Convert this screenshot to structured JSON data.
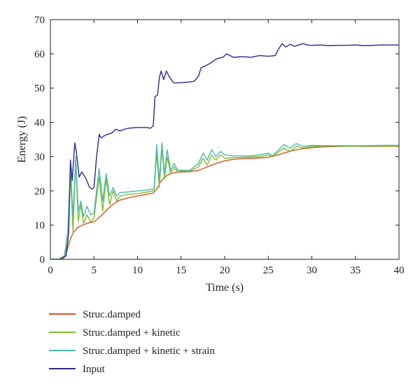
{
  "chart_data": {
    "type": "line",
    "title": "",
    "xlabel": "Time (s)",
    "ylabel": "Energy (J)",
    "xlim": [
      0,
      40
    ],
    "ylim": [
      0,
      70
    ],
    "xticks": [
      0,
      5,
      10,
      15,
      20,
      25,
      30,
      35,
      40
    ],
    "yticks": [
      0,
      10,
      20,
      30,
      40,
      50,
      60,
      70
    ],
    "grid": false,
    "legend_position": "bottom",
    "series": [
      {
        "name": "Struc.damped",
        "color": "#d9541e",
        "x": [
          0,
          1,
          1.5,
          1.8,
          2.0,
          2.3,
          2.6,
          3.0,
          3.5,
          4.0,
          4.5,
          5.0,
          5.5,
          6.0,
          6.5,
          7.0,
          7.5,
          8.0,
          9.0,
          10.0,
          11.0,
          11.8,
          12.2,
          12.6,
          13.0,
          13.5,
          14.0,
          14.5,
          15.0,
          16.0,
          17.0,
          18.0,
          19.0,
          20.0,
          21.0,
          22.0,
          23.0,
          24.0,
          25.0,
          26.0,
          27.0,
          28.0,
          29.0,
          30.0,
          31.0,
          32.0,
          34.0,
          36.0,
          38.0,
          40.0
        ],
        "values": [
          0,
          0,
          0.2,
          1.5,
          3.5,
          6.0,
          7.7,
          9.0,
          9.8,
          10.3,
          10.7,
          11.0,
          12.0,
          13.2,
          14.5,
          15.7,
          16.6,
          17.3,
          18.0,
          18.5,
          19.0,
          19.3,
          20.5,
          22.5,
          23.7,
          24.7,
          25.2,
          25.4,
          25.5,
          25.6,
          26.0,
          27.0,
          28.0,
          28.8,
          29.2,
          29.4,
          29.5,
          29.6,
          29.8,
          30.4,
          31.2,
          31.9,
          32.3,
          32.6,
          32.8,
          32.9,
          33.0,
          33.0,
          33.0,
          33.0
        ]
      },
      {
        "name": "Struc.damped + kinetic",
        "color": "#7cbf2a",
        "x": [
          0,
          1,
          1.6,
          2.0,
          2.3,
          2.6,
          2.9,
          3.2,
          3.5,
          3.8,
          4.2,
          4.6,
          5.0,
          5.6,
          6.0,
          6.4,
          6.8,
          7.2,
          7.6,
          8.0,
          9.0,
          10.0,
          11.0,
          11.9,
          12.2,
          12.5,
          12.8,
          13.1,
          13.4,
          13.8,
          14.2,
          14.6,
          15.0,
          16.0,
          17.0,
          17.5,
          18.0,
          18.5,
          19.0,
          19.5,
          20.0,
          21.0,
          22.0,
          23.0,
          24.0,
          25.0,
          25.5,
          26.0,
          26.8,
          27.5,
          28.2,
          29.0,
          30.0,
          31.0,
          32.0,
          34.0,
          36.0,
          38.0,
          40.0
        ],
        "values": [
          0,
          0,
          0.5,
          5.0,
          25.0,
          8.0,
          29.0,
          11.0,
          16.0,
          10.5,
          13.0,
          11.0,
          12.0,
          24.0,
          14.0,
          23.5,
          16.0,
          20.0,
          17.0,
          18.5,
          19.0,
          19.2,
          19.6,
          20.0,
          31.0,
          21.0,
          32.5,
          23.5,
          30.0,
          25.0,
          27.0,
          25.5,
          25.8,
          25.8,
          27.0,
          29.5,
          27.5,
          30.5,
          29.0,
          30.5,
          29.5,
          29.7,
          29.8,
          29.9,
          30.0,
          30.5,
          29.9,
          31.0,
          32.5,
          31.5,
          33.0,
          32.5,
          33.0,
          33.0,
          33.1,
          33.0,
          33.1,
          33.1,
          33.1
        ]
      },
      {
        "name": "Struc.damped + kinetic + strain",
        "color": "#4cb8ae",
        "x": [
          0,
          1,
          1.6,
          2.0,
          2.3,
          2.6,
          2.9,
          3.2,
          3.5,
          3.8,
          4.2,
          4.6,
          5.0,
          5.6,
          6.0,
          6.4,
          6.8,
          7.2,
          7.6,
          8.0,
          9.0,
          10.0,
          11.0,
          11.9,
          12.2,
          12.5,
          12.8,
          13.1,
          13.4,
          13.8,
          14.2,
          14.6,
          15.0,
          16.0,
          17.0,
          17.5,
          18.0,
          18.5,
          19.0,
          19.5,
          20.0,
          21.0,
          22.0,
          23.0,
          24.0,
          25.0,
          25.5,
          26.0,
          26.8,
          27.5,
          28.2,
          29.0,
          30.0,
          31.0,
          32.0,
          34.0,
          36.0,
          38.0,
          40.0
        ],
        "values": [
          0,
          0,
          1.0,
          8.0,
          28.0,
          12.0,
          30.0,
          14.0,
          17.0,
          12.5,
          15.5,
          13.0,
          13.5,
          26.5,
          17.0,
          25.0,
          18.5,
          21.0,
          18.5,
          19.5,
          19.7,
          20.0,
          20.2,
          20.5,
          33.5,
          23.0,
          34.0,
          25.0,
          32.0,
          26.0,
          28.0,
          26.0,
          26.0,
          26.0,
          28.0,
          31.0,
          29.0,
          32.0,
          30.0,
          31.5,
          30.5,
          30.2,
          30.2,
          30.2,
          30.5,
          31.0,
          30.3,
          31.5,
          33.5,
          32.5,
          33.8,
          33.0,
          33.3,
          33.2,
          33.2,
          33.2,
          33.2,
          33.3,
          33.3
        ]
      },
      {
        "name": "Input",
        "color": "#2b2a8f",
        "x": [
          0,
          1,
          1.8,
          2.1,
          2.3,
          2.5,
          2.8,
          3.0,
          3.3,
          3.6,
          4.0,
          4.5,
          4.8,
          5.0,
          5.3,
          5.6,
          5.8,
          6.5,
          7.0,
          7.5,
          8.0,
          8.5,
          9.0,
          10.0,
          11.0,
          11.5,
          11.8,
          12.0,
          12.3,
          12.5,
          12.7,
          13.0,
          13.3,
          13.6,
          14.0,
          14.2,
          15.0,
          16.0,
          16.5,
          17.0,
          17.3,
          17.8,
          18.5,
          19.0,
          19.8,
          20.2,
          21.0,
          22.0,
          23.0,
          24.0,
          25.0,
          25.8,
          26.2,
          26.6,
          27.0,
          27.5,
          28.0,
          28.5,
          29.0,
          29.5,
          30.0,
          31.0,
          32.0,
          33.0,
          34.0,
          35.0,
          36.0,
          37.0,
          38.0,
          39.0,
          40.0
        ],
        "values": [
          0,
          0,
          1.0,
          8.0,
          29.0,
          23.0,
          34.0,
          31.0,
          24.0,
          25.5,
          24.0,
          21.0,
          20.5,
          21.0,
          30.0,
          36.5,
          35.5,
          36.5,
          36.8,
          38.0,
          37.5,
          38.0,
          38.3,
          38.5,
          38.5,
          38.3,
          39.0,
          47.5,
          48.0,
          53.0,
          55.0,
          52.5,
          55.0,
          53.5,
          52.0,
          51.5,
          51.6,
          51.8,
          52.0,
          53.5,
          56.0,
          56.5,
          57.5,
          58.5,
          59.0,
          60.0,
          59.0,
          59.2,
          59.0,
          59.5,
          59.3,
          59.5,
          61.5,
          63.0,
          62.0,
          62.8,
          62.2,
          62.6,
          63.0,
          62.6,
          62.5,
          62.6,
          62.4,
          62.5,
          62.5,
          62.6,
          62.4,
          62.5,
          62.6,
          62.6,
          62.6
        ]
      }
    ]
  }
}
